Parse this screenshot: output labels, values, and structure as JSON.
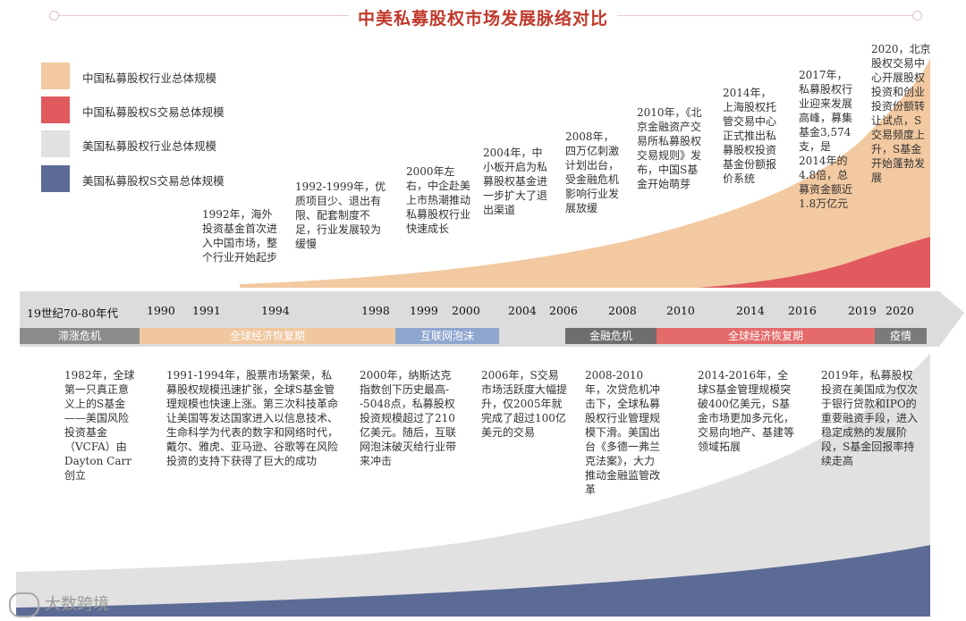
{
  "title": "中美私募股权市场发展脉络对比",
  "colors": {
    "china_total": "#f2c9a0",
    "china_s": "#e05a5e",
    "us_total": "#e1e1e1",
    "us_s": "#5b6b95",
    "title": "#c0392b"
  },
  "legend": [
    {
      "label": "中国私募股权行业总体规模",
      "color": "#f2c9a0"
    },
    {
      "label": "中国私募股权S交易总体规模",
      "color": "#e05a5e"
    },
    {
      "label": "美国私募股权行业总体规模",
      "color": "#e1e1e1"
    },
    {
      "label": "美国私募股权S交易总体规模",
      "color": "#5b6b95"
    }
  ],
  "timeline_years": [
    "19世纪70-80年代",
    "1990",
    "1991",
    "1994",
    "1998",
    "1999",
    "2000",
    "2004",
    "2006",
    "2008",
    "2010",
    "2014",
    "2016",
    "2019",
    "2020"
  ],
  "eras": [
    {
      "label": "滞涨危机",
      "color": "#8c8c8c"
    },
    {
      "label": "全球经济恢复期",
      "color": "#f0c79e"
    },
    {
      "label": "互联网泡沫",
      "color": "#8fa6cf"
    },
    {
      "label": "金融危机",
      "color": "#6e6e6e"
    },
    {
      "label": "全球经济恢复期",
      "color": "#e56a6a"
    },
    {
      "label": "疫情",
      "color": "#7a7a7a"
    }
  ],
  "china_events": [
    "1992年，海外投资基金首次进入中国市场，整个行业开始起步",
    "1992-1999年，优质项目少、退出有限、配套制度不足，行业发展较为缓慢",
    "2000年左右，中企赴美上市热潮推动私募股权行业快速成长",
    "2004年，中小板开启为私募股权基金进一步扩大了退出渠道",
    "2008年，四万亿刺激计划出台，受金融危机影响行业发展放缓",
    "2010年，《北京金融资产交易所私募股权交易规则》发布，中国S基金开始萌芽",
    "2014年，上海股权托管交易中心正式推出私募股权投资基金份额报价系统",
    "2017年，私募股权行业迎来发展高峰，募集基金3,574支，是2014年的4.8倍，总募资金额近1.8万亿元",
    "2020，北京股权交易中心开展股权投资和创业投资份额转让试点，S交易频度上升，S基金开始蓬勃发展"
  ],
  "us_events": [
    "1982年，全球第一只真正意义上的S基金——美国风险投资基金（VCFA）由Dayton Carr创立",
    "1991-1994年，股票市场繁荣，私募股权规模迅速扩张，全球S基金管理规模也快速上涨。第三次科技革命让美国等发达国家进入以信息技术、生命科学为代表的数字和网络时代，戴尔、雅虎、亚马逊、谷歌等在风险投资的支持下获得了巨大的成功",
    "2000年，纳斯达克指数创下历史最高--5048点，私募股权投资规模超过了210亿美元。随后，互联网泡沫破灭给行业带来冲击",
    "2006年，S交易市场活跃度大幅提升，仅2005年就完成了超过100亿美元的交易",
    "2008-2010年，次贷危机冲击下，全球私募股权行业管理规模下滑。美国出台《多德一弗兰克法案》，大力推动金融监管改革",
    "2014-2016年，全球S基金管理规模突破400亿美元，S基金市场更加多元化，交易向地产、基建等领域拓展",
    "2019年，私募股权投资在美国成为仅次于银行贷款和IPO的重要融资手段，进入稳定成熟的发展阶段，S基金回报率持续走高"
  ],
  "logo_text": "大数跨境"
}
